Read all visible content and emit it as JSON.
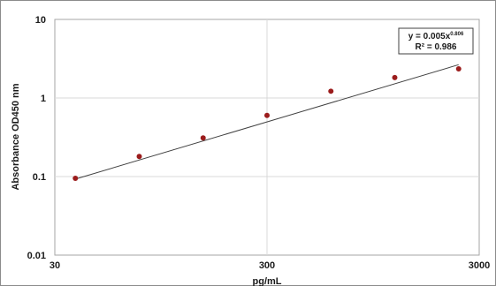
{
  "chart_data": {
    "type": "scatter",
    "title": "",
    "xlabel": "pg/mL",
    "ylabel": "Absorbance OD450 nm",
    "xscale": "log",
    "yscale": "log",
    "xlim": [
      30,
      3000
    ],
    "ylim": [
      0.01,
      10
    ],
    "x_ticks": [
      30,
      300,
      3000
    ],
    "x_tick_labels": [
      "30",
      "300",
      "3000"
    ],
    "y_ticks": [
      0.01,
      0.1,
      1,
      10
    ],
    "y_tick_labels": [
      "0.01",
      "0.1",
      "1",
      "10"
    ],
    "grid": true,
    "legend": "none",
    "colors": {
      "points": "#9b1c1c",
      "trendline": "#404040",
      "grid": "#d9d9d9"
    },
    "series": [
      {
        "x": [
          37.5,
          75,
          150,
          300,
          600,
          1200,
          2400
        ],
        "y": [
          0.095,
          0.18,
          0.31,
          0.6,
          1.22,
          1.82,
          2.35
        ]
      }
    ],
    "trendline": {
      "type": "power",
      "coefficient": 0.005,
      "exponent": 0.806,
      "x_range": [
        37.5,
        2400
      ],
      "equation_prefix": "y = 0.005x",
      "equation_exponent": "0.806",
      "r_squared_label": "R² = 0.986"
    }
  }
}
